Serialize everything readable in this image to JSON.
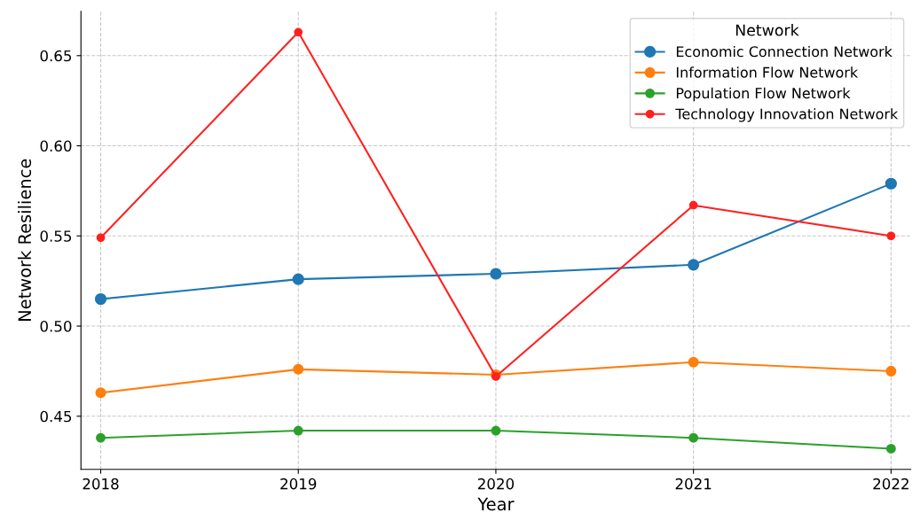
{
  "chart_data": {
    "type": "line",
    "xlabel": "Year",
    "ylabel": "Network Resilience",
    "legend_title": "Network",
    "legend": "top right",
    "grid": true,
    "marker": "circle",
    "line_style": "solid",
    "x": [
      2018,
      2019,
      2020,
      2021,
      2022
    ],
    "xlim": [
      2017.9,
      2022.1
    ],
    "xticks": [
      2018,
      2019,
      2020,
      2021,
      2022
    ],
    "ylim": [
      0.4205,
      0.6746
    ],
    "yticks": [
      {
        "value": 0.45,
        "label": "0.45"
      },
      {
        "value": 0.5,
        "label": "0.50"
      },
      {
        "value": 0.55,
        "label": "0.55"
      },
      {
        "value": 0.6,
        "label": "0.60"
      },
      {
        "value": 0.65,
        "label": "0.65"
      }
    ],
    "series": [
      {
        "name": "Economic Connection Network",
        "color": "#1f77b4",
        "values": [
          0.515,
          0.526,
          0.529,
          0.534,
          0.579
        ]
      },
      {
        "name": "Information Flow Network",
        "color": "#ff7f0e",
        "values": [
          0.463,
          0.476,
          0.473,
          0.48,
          0.475
        ]
      },
      {
        "name": "Population Flow Network",
        "color": "#2ca02c",
        "values": [
          0.438,
          0.442,
          0.442,
          0.438,
          0.432
        ]
      },
      {
        "name": "Technology Innovation Network",
        "color": "#ff2020",
        "values": [
          0.549,
          0.663,
          0.472,
          0.567,
          0.55
        ]
      }
    ]
  }
}
